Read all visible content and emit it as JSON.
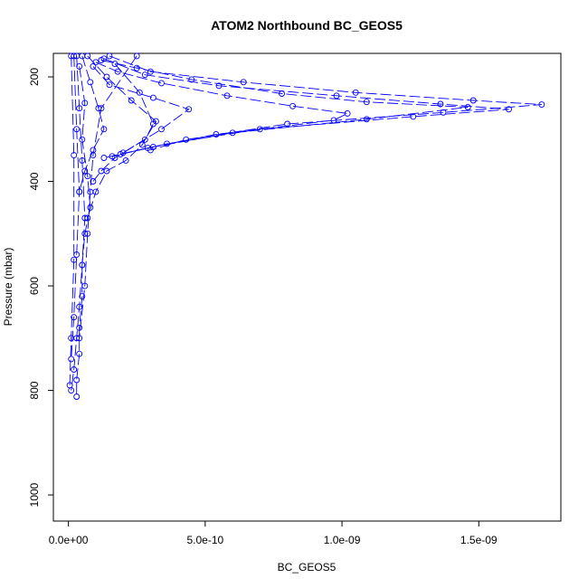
{
  "chart_data": {
    "type": "scatter",
    "title": "ATOM2 Northbound BC_GEOS5",
    "xlabel": "BC_GEOS5",
    "ylabel": "Pressure (mbar)",
    "xlim": [
      -5.5e-11,
      1.8e-09
    ],
    "ylim": [
      1050,
      155
    ],
    "y_reversed": true,
    "x_ticks": [
      {
        "value": 0,
        "label": "0.0e+00"
      },
      {
        "value": 5e-10,
        "label": "5.0e-10"
      },
      {
        "value": 1e-09,
        "label": "1.0e-09"
      },
      {
        "value": 1.5e-09,
        "label": "1.5e-09"
      }
    ],
    "y_ticks": [
      {
        "value": 200,
        "label": "200"
      },
      {
        "value": 400,
        "label": "400"
      },
      {
        "value": 600,
        "label": "600"
      },
      {
        "value": 800,
        "label": "800"
      },
      {
        "value": 1000,
        "label": "1000"
      }
    ],
    "marker": "open-circle",
    "line_style": "dashed",
    "color": "#0000ff",
    "series": [
      {
        "x": [
          1.5e-10,
          3e-10,
          6.4e-10,
          1.05e-09,
          1.48e-09,
          1.73e-09,
          1.37e-09,
          8e-10,
          4.3e-10,
          3e-10
        ],
        "y": [
          160,
          190,
          210,
          230,
          245,
          253,
          268,
          290,
          320,
          340
        ]
      },
      {
        "x": [
          1.3e-10,
          2.8e-10,
          5.5e-10,
          9.8e-10,
          1.36e-09,
          1.61e-09,
          1.26e-09,
          7e-10,
          3.6e-10,
          1.9e-10
        ],
        "y": [
          165,
          196,
          217,
          236,
          252,
          262,
          276,
          300,
          328,
          348
        ]
      },
      {
        "x": [
          1.2e-10,
          2.5e-10,
          4.5e-10,
          7.8e-10,
          1.09e-09,
          1.46e-09,
          1.09e-09,
          6e-10,
          3.1e-10,
          1.6e-10
        ],
        "y": [
          168,
          183,
          205,
          232,
          248,
          258,
          281,
          307,
          334,
          352
        ]
      },
      {
        "x": [
          1e-10,
          1.8e-10,
          3.4e-10,
          5.8e-10,
          8.2e-10,
          1.02e-09,
          9.7e-10,
          5.4e-10,
          2.9e-10,
          1.3e-10
        ],
        "y": [
          172,
          190,
          212,
          236,
          256,
          270,
          283,
          310,
          336,
          355
        ]
      },
      {
        "x": [
          9e-11,
          1.5e-10,
          3.1e-10,
          4.4e-10,
          3.4e-10,
          2e-10
        ],
        "y": [
          180,
          215,
          240,
          262,
          300,
          345
        ]
      },
      {
        "x": [
          7e-11,
          1.4e-10,
          2.3e-10,
          3.2e-10,
          2.8e-10,
          1.7e-10,
          1.2e-10,
          9e-11
        ],
        "y": [
          160,
          200,
          245,
          285,
          320,
          355,
          380,
          400
        ]
      },
      {
        "x": [
          5e-11,
          8e-11,
          1.1e-10,
          1.3e-10,
          9e-11,
          6e-11,
          4e-11
        ],
        "y": [
          160,
          210,
          260,
          300,
          340,
          380,
          420
        ]
      },
      {
        "x": [
          4e-11,
          6e-11,
          5e-11,
          7e-11,
          8e-11,
          6e-11,
          5e-11,
          5e-11,
          4e-11,
          4e-11,
          3e-11,
          3e-11
        ],
        "y": [
          180,
          250,
          320,
          390,
          450,
          500,
          560,
          620,
          680,
          730,
          780,
          812
        ]
      },
      {
        "x": [
          3e-11,
          4e-11,
          5e-11,
          6e-11,
          5e-11,
          4e-11,
          3e-11,
          2e-11,
          1e-11
        ],
        "y": [
          160,
          260,
          360,
          470,
          560,
          640,
          700,
          760,
          800
        ]
      },
      {
        "x": [
          2e-11,
          3e-11,
          4e-11,
          3e-11,
          2e-11,
          1e-11
        ],
        "y": [
          160,
          300,
          420,
          540,
          660,
          740
        ]
      },
      {
        "x": [
          1e-11,
          2e-11,
          2e-11,
          1e-11,
          5e-12
        ],
        "y": [
          160,
          350,
          550,
          700,
          790
        ]
      },
      {
        "x": [
          2.5e-10,
          1.2e-10,
          9e-11,
          8e-11,
          7e-11,
          6e-11,
          4e-11
        ],
        "y": [
          160,
          260,
          350,
          420,
          500,
          600,
          700
        ]
      },
      {
        "x": [
          1.7e-10,
          2.6e-10,
          3.1e-10,
          2.7e-10,
          2.1e-10,
          1.4e-10,
          1e-10,
          7e-11
        ],
        "y": [
          175,
          230,
          290,
          330,
          360,
          380,
          420,
          470
        ]
      }
    ]
  }
}
